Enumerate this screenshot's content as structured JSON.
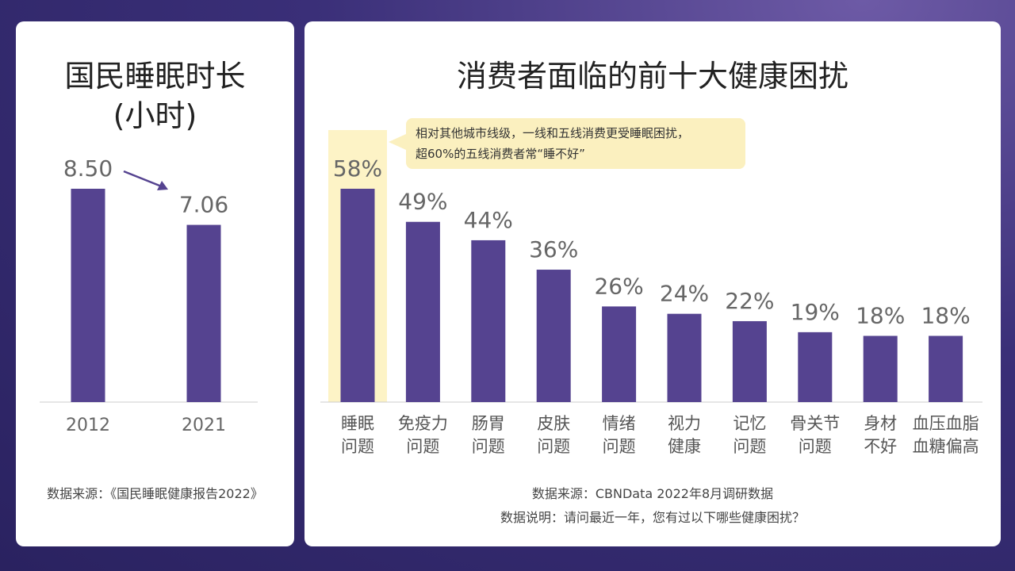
{
  "colors": {
    "bar": "#554390",
    "highlight": "#fdf3c6",
    "axis": "#cccccc"
  },
  "left": {
    "title_line1": "国民睡眠时长",
    "title_line2": "(小时)",
    "source": "数据来源：《国民睡眠健康报告2022》"
  },
  "right": {
    "title": "消费者面临的前十大健康困扰",
    "callout_line1": "相对其他城市线级，一线和五线消费更受睡眠困扰，",
    "callout_line2": "超60%的五线消费者常“睡不好”",
    "source": "数据来源：CBNData 2022年8月调研数据",
    "note": "数据说明：请问最近一年，您有过以下哪些健康困扰？"
  },
  "chart_data": [
    {
      "type": "bar",
      "title": "国民睡眠时长(小时)",
      "categories": [
        "2012",
        "2021"
      ],
      "values": [
        8.5,
        7.06
      ],
      "value_labels": [
        "8.50",
        "7.06"
      ],
      "ylim": [
        0,
        10
      ],
      "annotation": "arrow from 2012 to 2021 indicating decrease"
    },
    {
      "type": "bar",
      "title": "消费者面临的前十大健康困扰",
      "categories": [
        [
          "睡眠",
          "问题"
        ],
        [
          "免疫力",
          "问题"
        ],
        [
          "肠胃",
          "问题"
        ],
        [
          "皮肤",
          "问题"
        ],
        [
          "情绪",
          "问题"
        ],
        [
          "视力",
          "健康"
        ],
        [
          "记忆",
          "问题"
        ],
        [
          "骨关节",
          "问题"
        ],
        [
          "身材",
          "不好"
        ],
        [
          "血压血脂",
          "血糖偏高"
        ]
      ],
      "values": [
        58,
        49,
        44,
        36,
        26,
        24,
        22,
        19,
        18,
        18
      ],
      "value_labels": [
        "58%",
        "49%",
        "44%",
        "36%",
        "26%",
        "24%",
        "22%",
        "19%",
        "18%",
        "18%"
      ],
      "ylim": [
        0,
        68
      ],
      "highlighted_category_index": 0
    }
  ]
}
